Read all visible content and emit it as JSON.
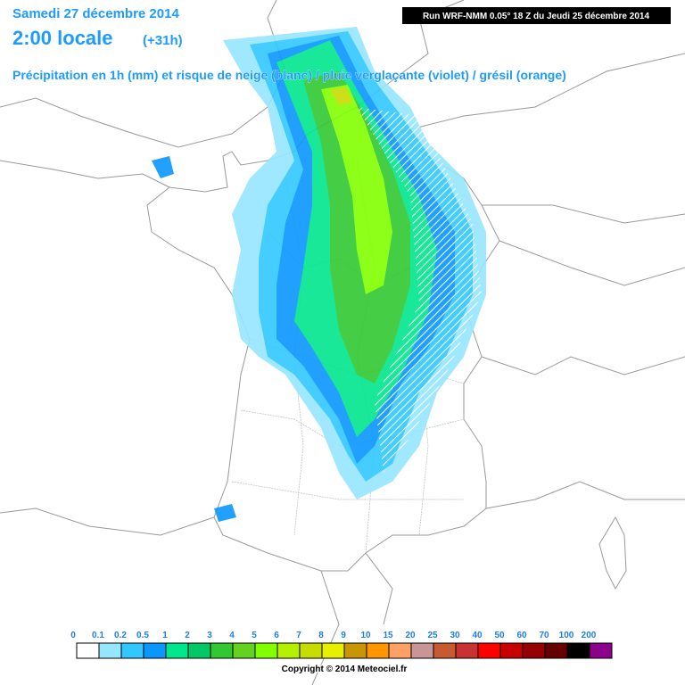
{
  "header": {
    "date": "Samedi 27 décembre 2014",
    "time": "2:00 locale",
    "offset": "(+31h)",
    "subtitle": "Précipitation en 1h (mm) et risque de neige (blanc) / pluie verglaçante (violet) / grésil (orange)",
    "run": "Run WRF-NMM 0.05° 18 Z du Jeudi 25 décembre 2014"
  },
  "legend": {
    "labels": [
      "0",
      "0.1",
      "0.2",
      "0.5",
      "1",
      "2",
      "3",
      "4",
      "5",
      "6",
      "7",
      "8",
      "9",
      "10",
      "15",
      "20",
      "25",
      "30",
      "40",
      "50",
      "60",
      "70",
      "100",
      "200"
    ],
    "colors": [
      "#ffffff",
      "#96e6ff",
      "#32c8ff",
      "#0a96ff",
      "#00e68c",
      "#00c864",
      "#32c832",
      "#64d21e",
      "#82ff00",
      "#b4f000",
      "#c8dc00",
      "#e6f000",
      "#c89600",
      "#ff9600",
      "#ffa064",
      "#c89696",
      "#c85a32",
      "#c83232",
      "#ff0000",
      "#c80000",
      "#960000",
      "#640000",
      "#000000",
      "#8c008c"
    ]
  },
  "copyright": "Copyright © 2014 Meteociel.fr"
}
